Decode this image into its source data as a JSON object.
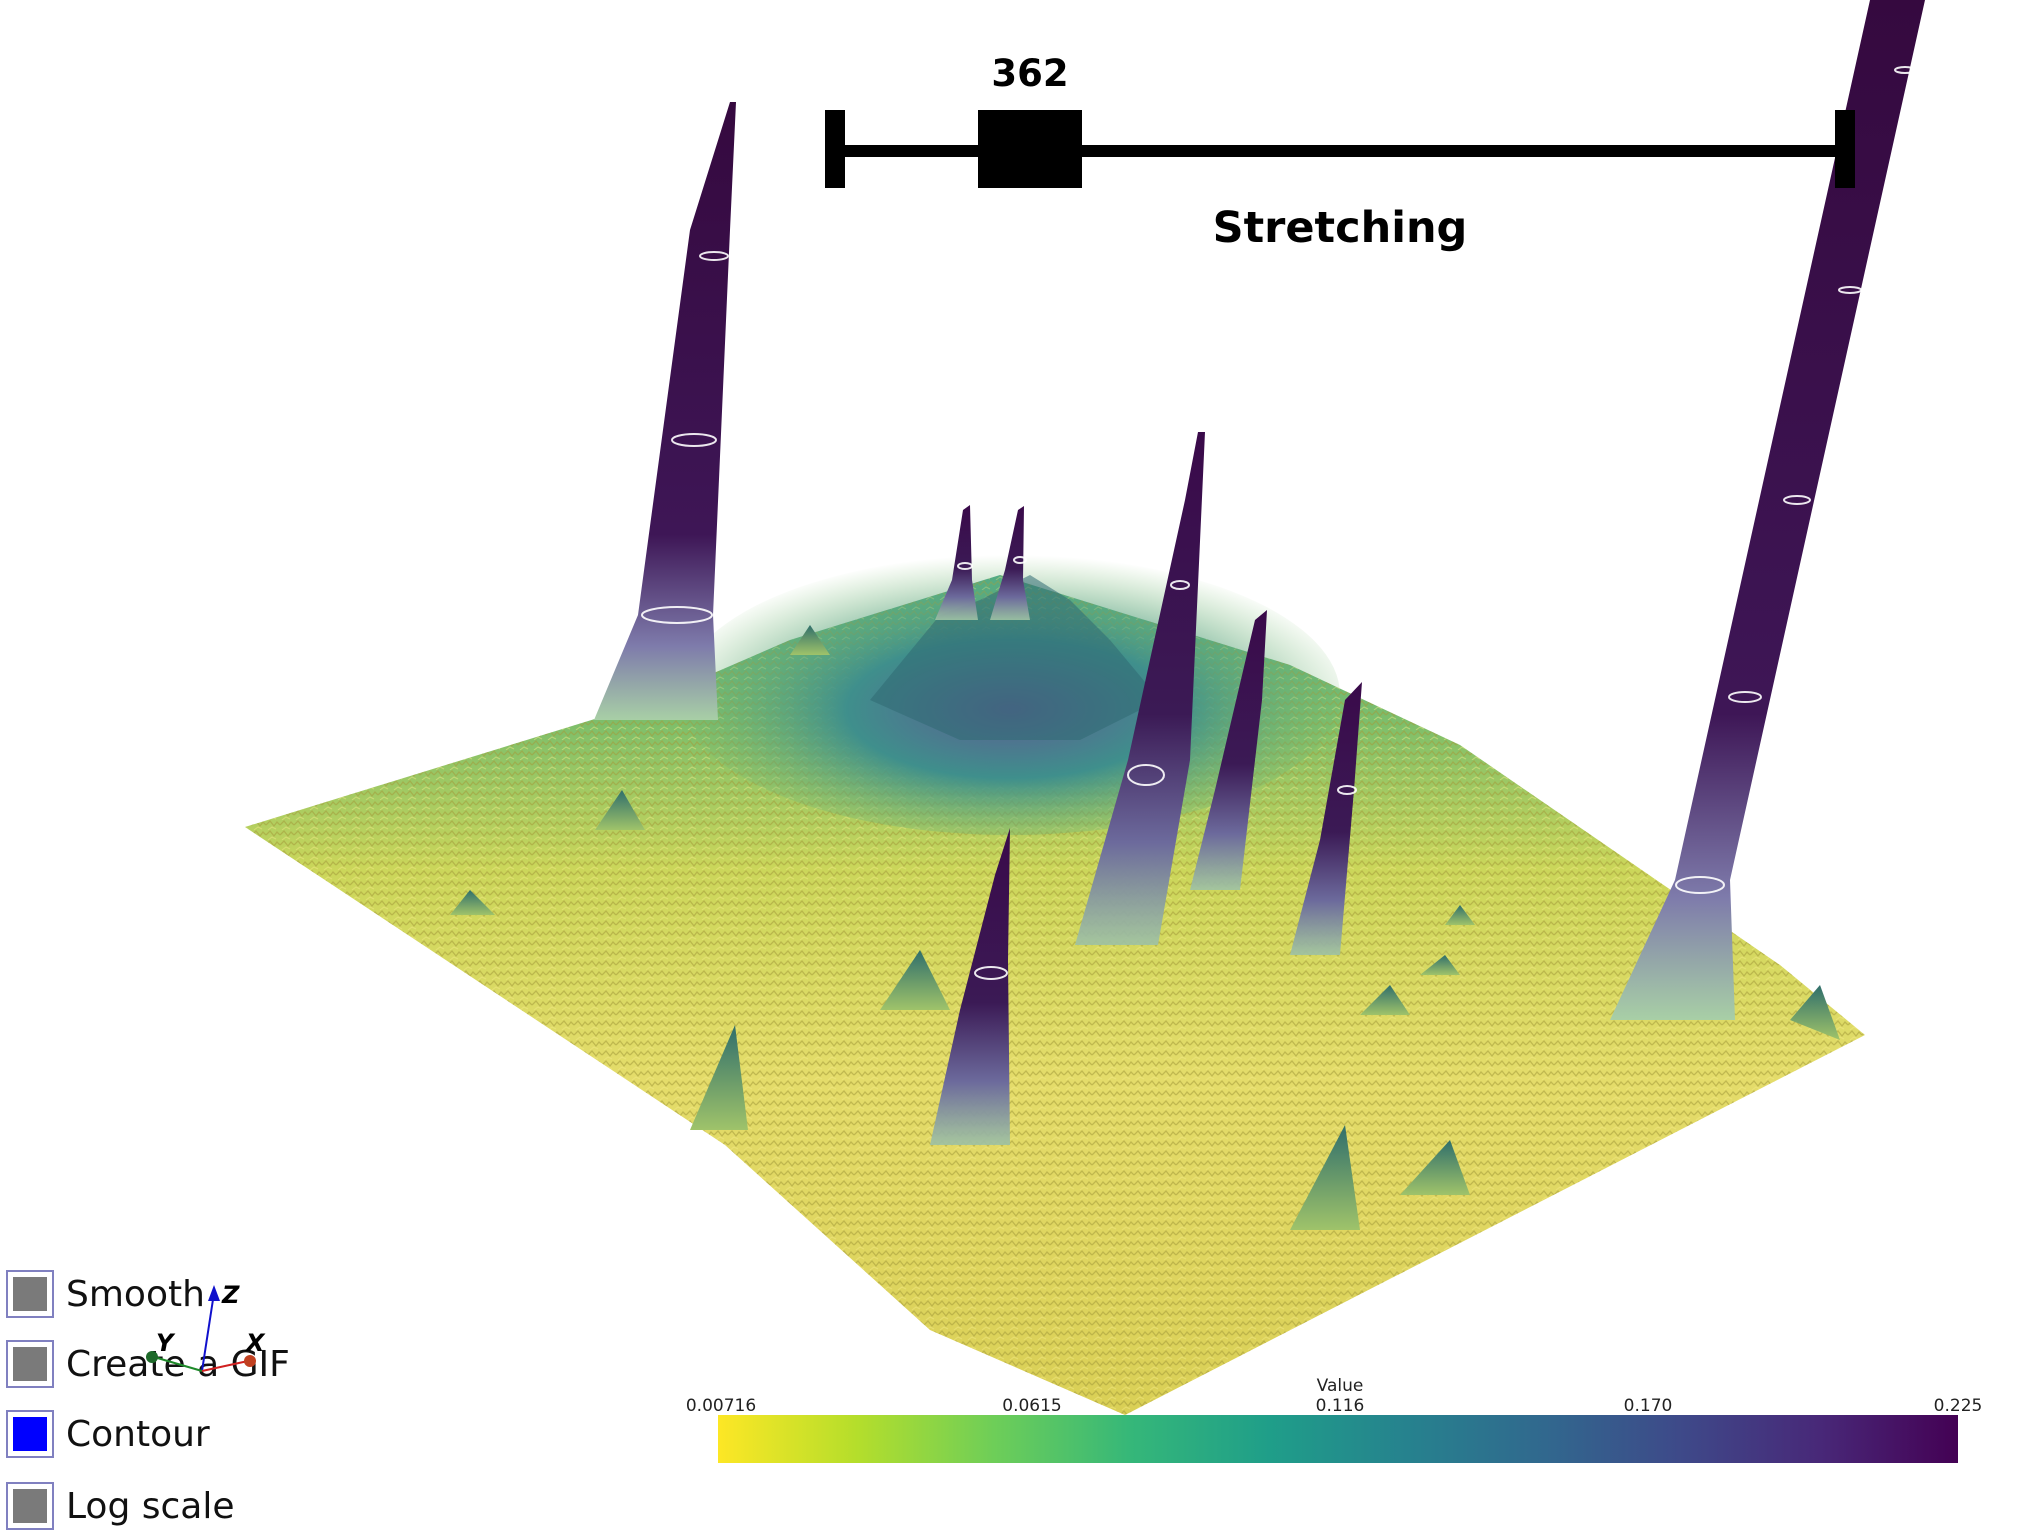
{
  "slider": {
    "value": "362",
    "title": "Stretching",
    "value_fraction": 0.17
  },
  "checkboxes": [
    {
      "label": "Smooth",
      "checked": false
    },
    {
      "label": "Create a GIF",
      "checked": false
    },
    {
      "label": "Contour",
      "checked": true
    },
    {
      "label": "Log scale",
      "checked": false
    }
  ],
  "axes": {
    "x": "X",
    "y": "Y",
    "z": "Z"
  },
  "scalar_bar": {
    "title": "Value",
    "ticks": [
      "0.00716",
      "0.0615",
      "0.116",
      "0.170",
      "0.225"
    ],
    "colormap": [
      "#fde725",
      "#b5de2b",
      "#6ece58",
      "#35b779",
      "#1f9e89",
      "#26828e",
      "#31688e",
      "#3e4989",
      "#482878",
      "#440154"
    ]
  },
  "colors": {
    "background": "#ffffff",
    "surface_low": "#fde725",
    "surface_high": "#440154",
    "checkbox_on": "#0000ff",
    "checkbox_off": "#7a7a7a"
  }
}
